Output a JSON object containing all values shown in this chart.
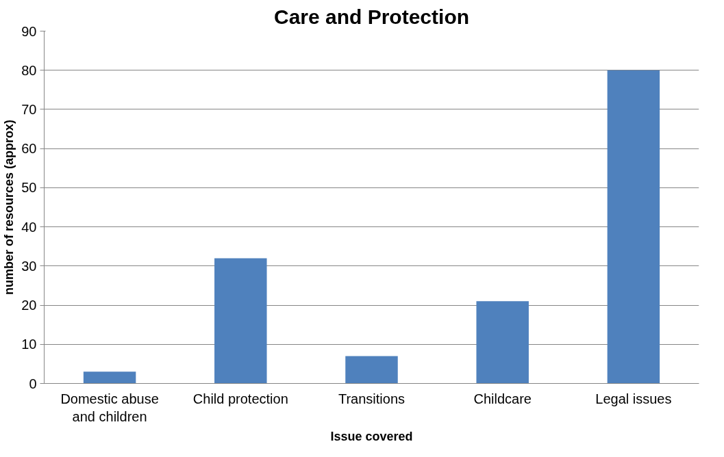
{
  "chart_data": {
    "type": "bar",
    "title": "Care and Protection",
    "xlabel": "Issue covered",
    "ylabel": "number of resources (approx)",
    "categories": [
      "Domestic abuse and children",
      "Child protection",
      "Transitions",
      "Childcare",
      "Legal issues"
    ],
    "values": [
      3,
      32,
      7,
      21,
      80
    ],
    "color": "#4f81bd",
    "ylim": [
      0,
      90
    ],
    "yticks": [
      0,
      10,
      20,
      30,
      40,
      50,
      60,
      70,
      80,
      90
    ],
    "grid": "y"
  }
}
